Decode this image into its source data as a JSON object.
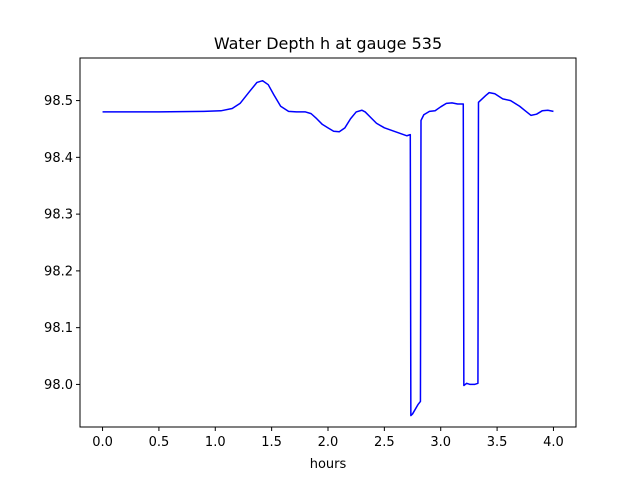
{
  "chart_data": {
    "type": "line",
    "title": "Water Depth h at gauge 535",
    "xlabel": "hours",
    "ylabel": "",
    "xlim": [
      -0.2,
      4.2
    ],
    "ylim": [
      97.925,
      98.575
    ],
    "xticks": [
      0.0,
      0.5,
      1.0,
      1.5,
      2.0,
      2.5,
      3.0,
      3.5,
      4.0
    ],
    "xtick_labels": [
      "0.0",
      "0.5",
      "1.0",
      "1.5",
      "2.0",
      "2.5",
      "3.0",
      "3.5",
      "4.0"
    ],
    "yticks": [
      98.0,
      98.1,
      98.2,
      98.3,
      98.4,
      98.5
    ],
    "ytick_labels": [
      "98.0",
      "98.1",
      "98.2",
      "98.3",
      "98.4",
      "98.5"
    ],
    "grid": false,
    "series": [
      {
        "color": "#0000ff",
        "x": [
          0.0,
          0.5,
          0.9,
          1.05,
          1.15,
          1.22,
          1.3,
          1.37,
          1.42,
          1.47,
          1.52,
          1.58,
          1.65,
          1.72,
          1.8,
          1.85,
          1.9,
          1.95,
          2.0,
          2.05,
          2.1,
          2.15,
          2.2,
          2.25,
          2.3,
          2.33,
          2.38,
          2.43,
          2.5,
          2.6,
          2.7,
          2.73,
          2.735,
          2.75,
          2.8,
          2.82,
          2.825,
          2.85,
          2.9,
          2.95,
          3.0,
          3.05,
          3.1,
          3.15,
          3.2,
          3.205,
          3.23,
          3.26,
          3.3,
          3.33,
          3.335,
          3.4,
          3.43,
          3.48,
          3.55,
          3.62,
          3.7,
          3.75,
          3.8,
          3.85,
          3.9,
          3.95,
          4.0
        ],
        "y": [
          98.48,
          98.48,
          98.481,
          98.482,
          98.486,
          98.495,
          98.515,
          98.532,
          98.535,
          98.528,
          98.51,
          98.49,
          98.481,
          98.48,
          98.48,
          98.477,
          98.468,
          98.458,
          98.452,
          98.446,
          98.445,
          98.452,
          98.468,
          98.48,
          98.483,
          98.48,
          98.47,
          98.46,
          98.452,
          98.445,
          98.438,
          98.44,
          97.945,
          97.948,
          97.965,
          97.97,
          98.465,
          98.475,
          98.481,
          98.482,
          98.489,
          98.495,
          98.496,
          98.494,
          98.494,
          97.998,
          98.002,
          98.0,
          98.0,
          98.002,
          98.497,
          98.509,
          98.514,
          98.512,
          98.503,
          98.5,
          98.49,
          98.482,
          98.474,
          98.476,
          98.482,
          98.483,
          98.481
        ]
      }
    ]
  }
}
